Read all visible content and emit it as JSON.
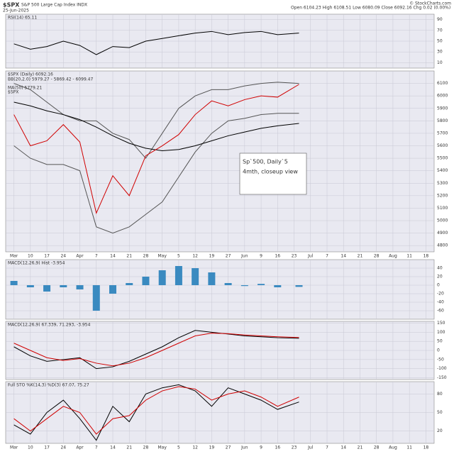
{
  "header": {
    "symbol": "$SPX",
    "name": "S&P 500 Large Cap Index INDX",
    "date": "25-Jun-2025",
    "ohlc": "Open 6104.23  High 6108.51  Low 6080.09  Close 6092.16  Chg 0.02 (0.00%)",
    "credit": "© StockCharts.com"
  },
  "chart_data": [
    {
      "type": "line",
      "title": "RSI(14) 65.11",
      "ylim": [
        0,
        100
      ],
      "yticks": [
        90,
        70,
        50,
        30,
        10
      ],
      "grid": true,
      "x": [
        0,
        1,
        2,
        3,
        4,
        5,
        6,
        7,
        8,
        9,
        10,
        11,
        12,
        13,
        14,
        15,
        16,
        17.3
      ],
      "series": [
        {
          "color": "#000000",
          "values": [
            45,
            35,
            40,
            50,
            42,
            25,
            40,
            38,
            50,
            55,
            60,
            65,
            68,
            62,
            66,
            68,
            62,
            65
          ]
        }
      ],
      "xlim": [
        -0.5,
        25.5
      ]
    },
    {
      "type": "line",
      "title": "$SPX (Daily) 6092.16",
      "ylim": [
        4750,
        6200
      ],
      "yticks": [
        6100,
        6000,
        5900,
        5800,
        5700,
        5600,
        5500,
        5400,
        5300,
        5200,
        5100,
        5000,
        4900,
        4800
      ],
      "grid": true,
      "x": [
        0,
        1,
        2,
        3,
        4,
        5,
        6,
        7,
        8,
        9,
        10,
        11,
        12,
        13,
        14,
        15,
        16,
        17.3
      ],
      "series": [
        {
          "name": "BB(20,2.0) 5979.27 - 5869.42 - 6099.47",
          "color": "#555555",
          "values": [
            6100,
            6050,
            5950,
            5850,
            5800,
            5800,
            5700,
            5650,
            5500,
            5700,
            5900,
            6000,
            6050,
            6050,
            6080,
            6100,
            6110,
            6100
          ]
        },
        {
          "color": "#555555",
          "values": [
            5600,
            5500,
            5450,
            5450,
            5400,
            4950,
            4900,
            4950,
            5050,
            5150,
            5350,
            5550,
            5700,
            5800,
            5820,
            5850,
            5860,
            5860
          ]
        },
        {
          "name": "MA(50) 5779.21",
          "color": "#000000",
          "values": [
            5950,
            5920,
            5880,
            5850,
            5810,
            5750,
            5680,
            5620,
            5580,
            5560,
            5570,
            5600,
            5640,
            5680,
            5710,
            5740,
            5760,
            5779
          ]
        },
        {
          "name": "$SPX",
          "color": "#d00000",
          "values": [
            5850,
            5600,
            5640,
            5770,
            5630,
            5060,
            5360,
            5200,
            5520,
            5600,
            5690,
            5850,
            5960,
            5920,
            5970,
            6000,
            5990,
            6092
          ]
        }
      ],
      "annotation": [
        "Sp`500, Daily`5",
        "4mth, closeup view"
      ],
      "xlim": [
        -0.5,
        25.5
      ],
      "xticks": [
        {
          "value": 0,
          "label": "Mar"
        },
        {
          "value": 1,
          "label": "10"
        },
        {
          "value": 2,
          "label": "17"
        },
        {
          "value": 3,
          "label": "24"
        },
        {
          "value": 4,
          "label": "Apr"
        },
        {
          "value": 5,
          "label": "7"
        },
        {
          "value": 6,
          "label": "14"
        },
        {
          "value": 7,
          "label": "21"
        },
        {
          "value": 8,
          "label": "28"
        },
        {
          "value": 9,
          "label": "May"
        },
        {
          "value": 10,
          "label": "5"
        },
        {
          "value": 11,
          "label": "12"
        },
        {
          "value": 12,
          "label": "19"
        },
        {
          "value": 13,
          "label": "27"
        },
        {
          "value": 14,
          "label": "Jun"
        },
        {
          "value": 15,
          "label": "9"
        },
        {
          "value": 16,
          "label": "16"
        },
        {
          "value": 17,
          "label": "23"
        },
        {
          "value": 18,
          "label": "Jul"
        },
        {
          "value": 19,
          "label": "7"
        },
        {
          "value": 20,
          "label": "14"
        },
        {
          "value": 21,
          "label": "21"
        },
        {
          "value": 22,
          "label": "28"
        },
        {
          "value": 23,
          "label": "Aug"
        },
        {
          "value": 24,
          "label": "11"
        },
        {
          "value": 25,
          "label": "18"
        }
      ]
    },
    {
      "type": "bar",
      "title": "MACD(12,26,9) Hist -3.954",
      "ylim": [
        -80,
        60
      ],
      "yticks": [
        40,
        20,
        0,
        -20,
        -40,
        -60
      ],
      "grid": true,
      "x": [
        0,
        1,
        2,
        3,
        4,
        5,
        6,
        7,
        8,
        9,
        10,
        11,
        12,
        13,
        14,
        15,
        16,
        17.3
      ],
      "series": [
        {
          "color": "#3a8ac0",
          "values": [
            10,
            -5,
            -15,
            -5,
            -10,
            -60,
            -20,
            5,
            20,
            35,
            45,
            40,
            30,
            5,
            -2,
            3,
            -5,
            -4
          ]
        }
      ],
      "xlim": [
        -0.5,
        25.5
      ]
    },
    {
      "type": "line",
      "title": "MACD(12,26,9) 67.339, 71.293, -3.954",
      "ylim": [
        -160,
        160
      ],
      "yticks": [
        150,
        100,
        50,
        0,
        -50,
        -100,
        -150
      ],
      "grid": true,
      "x": [
        0,
        1,
        2,
        3,
        4,
        5,
        6,
        7,
        8,
        9,
        10,
        11,
        12,
        13,
        14,
        15,
        16,
        17.3
      ],
      "series": [
        {
          "color": "#000000",
          "values": [
            20,
            -30,
            -60,
            -50,
            -40,
            -100,
            -90,
            -60,
            -20,
            20,
            70,
            110,
            100,
            90,
            80,
            75,
            70,
            67
          ]
        },
        {
          "color": "#d00000",
          "values": [
            40,
            0,
            -40,
            -55,
            -45,
            -70,
            -85,
            -70,
            -40,
            0,
            40,
            80,
            95,
            92,
            85,
            80,
            75,
            71
          ]
        }
      ],
      "xlim": [
        -0.5,
        25.5
      ]
    },
    {
      "type": "line",
      "title": "Full STO %K(14,3) %D(3) 67.07, 75.27",
      "ylim": [
        0,
        100
      ],
      "yticks": [
        80,
        50,
        20
      ],
      "grid": true,
      "x": [
        0,
        1,
        2,
        3,
        4,
        5,
        6,
        7,
        8,
        9,
        10,
        11,
        12,
        13,
        14,
        15,
        16,
        17.3
      ],
      "series": [
        {
          "color": "#000000",
          "values": [
            30,
            15,
            50,
            70,
            40,
            5,
            60,
            35,
            80,
            90,
            95,
            85,
            60,
            90,
            80,
            70,
            55,
            67
          ]
        },
        {
          "color": "#d00000",
          "values": [
            40,
            20,
            40,
            60,
            50,
            15,
            40,
            45,
            70,
            85,
            92,
            88,
            70,
            80,
            85,
            75,
            60,
            75
          ]
        }
      ],
      "xlim": [
        -0.5,
        25.5
      ],
      "xticks": [
        {
          "value": 0,
          "label": "Mar"
        },
        {
          "value": 1,
          "label": "10"
        },
        {
          "value": 2,
          "label": "17"
        },
        {
          "value": 3,
          "label": "24"
        },
        {
          "value": 4,
          "label": "Apr"
        },
        {
          "value": 5,
          "label": "7"
        },
        {
          "value": 6,
          "label": "14"
        },
        {
          "value": 7,
          "label": "21"
        },
        {
          "value": 8,
          "label": "28"
        },
        {
          "value": 9,
          "label": "May"
        },
        {
          "value": 10,
          "label": "5"
        },
        {
          "value": 11,
          "label": "12"
        },
        {
          "value": 12,
          "label": "19"
        },
        {
          "value": 13,
          "label": "27"
        },
        {
          "value": 14,
          "label": "Jun"
        },
        {
          "value": 15,
          "label": "9"
        },
        {
          "value": 16,
          "label": "16"
        },
        {
          "value": 17,
          "label": "23"
        },
        {
          "value": 18,
          "label": "Jul"
        },
        {
          "value": 19,
          "label": "7"
        },
        {
          "value": 20,
          "label": "14"
        },
        {
          "value": 21,
          "label": "21"
        },
        {
          "value": 22,
          "label": "28"
        },
        {
          "value": 23,
          "label": "Aug"
        },
        {
          "value": 24,
          "label": "11"
        },
        {
          "value": 25,
          "label": "18"
        }
      ]
    }
  ]
}
